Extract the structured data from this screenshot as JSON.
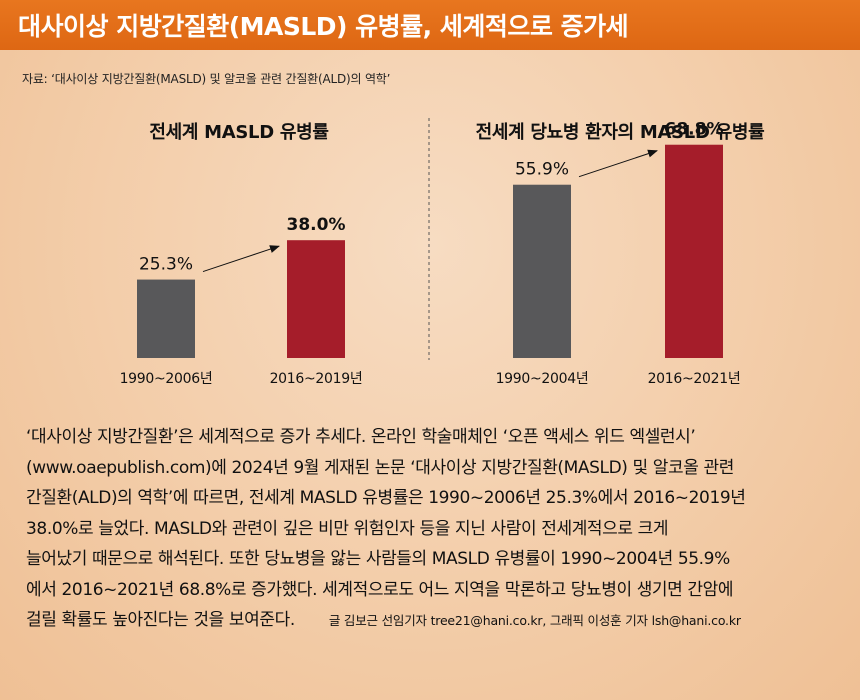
{
  "header": {
    "title": "대사이상 지방간질환(MASLD) 유병률, 세계적으로 증가세"
  },
  "source": "자료: ‘대사이상 지방간질환(MASLD) 및 알코올 관련 간질환(ALD)의 역학’",
  "colors": {
    "header": "#e26c17",
    "bar_earlier": "#58585a",
    "bar_recent": "#a51d2a"
  },
  "chart_data": [
    {
      "type": "bar",
      "title": "전세계 MASLD 유병률",
      "categories": [
        "1990~2006년",
        "2016~2019년"
      ],
      "values": [
        25.3,
        38.0
      ],
      "data_labels": [
        "25.3%",
        "38.0%"
      ],
      "ylim": [
        0,
        80
      ],
      "grid": false,
      "annotation": "arrow pointing from earlier bar to later bar"
    },
    {
      "type": "bar",
      "title": "전세계 당뇨병 환자의 MASLD 유병률",
      "categories": [
        "1990~2004년",
        "2016~2021년"
      ],
      "values": [
        55.9,
        68.8
      ],
      "data_labels": [
        "55.9%",
        "68.8%"
      ],
      "ylim": [
        0,
        80
      ],
      "grid": false,
      "annotation": "arrow pointing from earlier bar to later bar"
    }
  ],
  "article": {
    "lines": [
      "‘대사이상 지방간질환’은 세계적으로 증가 추세다. 온라인 학술매체인 ‘오픈 액세스 위드 엑셀런시’",
      "(www.oaepublish.com)에 2024년 9월 게재된 논문 ‘대사이상 지방간질환(MASLD) 및 알코올 관련",
      "간질환(ALD)의 역학’에 따르면, 전세계 MASLD 유병률은 1990~2006년 25.3%에서 2016~2019년",
      "38.0%로 늘었다. MASLD와 관련이 깊은 비만 위험인자 등을 지닌 사람이 전세계적으로 크게",
      "늘어났기 때문으로 해석된다. 또한 당뇨병을 앓는 사람들의 MASLD 유병률이 1990~2004년 55.9%",
      "에서 2016~2021년 68.8%로 증가했다. 세계적으로도 어느 지역을 막론하고 당뇨병이 생기면 간암에",
      "걸릴 확률도 높아진다는 것을 보여준다."
    ],
    "credit": "글 김보근 선임기자 tree21@hani.co.kr, 그래픽 이성훈 기자 lsh@hani.co.kr"
  }
}
